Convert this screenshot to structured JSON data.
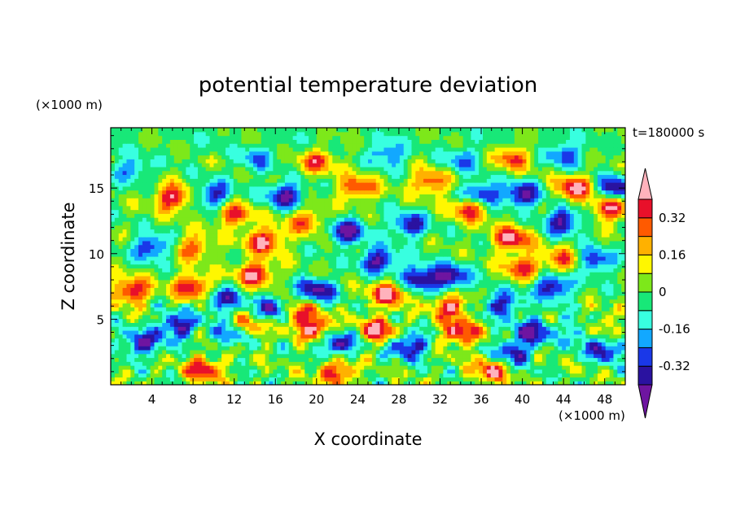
{
  "chart_data": {
    "type": "heatmap",
    "title": "potential temperature deviation",
    "xlabel": "X coordinate",
    "ylabel": "Z coordinate",
    "x_unit": "(×1000 m)",
    "y_unit": "(×1000 m)",
    "time_label": "t=180000 s",
    "xlim": [
      0,
      50
    ],
    "ylim": [
      0,
      19.6
    ],
    "x_ticks": [
      4,
      8,
      12,
      16,
      20,
      24,
      28,
      32,
      36,
      40,
      44,
      48
    ],
    "y_ticks": [
      5,
      10,
      15
    ],
    "colorbar": {
      "levels": [
        -0.4,
        -0.32,
        -0.24,
        -0.16,
        -0.08,
        0,
        0.08,
        0.16,
        0.24,
        0.32,
        0.4
      ],
      "labels": [
        "-0.32",
        "-0.16",
        "0",
        "0.16",
        "0.32"
      ],
      "label_values": [
        -0.32,
        -0.16,
        0,
        0.16,
        0.32
      ],
      "colors": [
        "#6e15a0",
        "#2a12a0",
        "#1a38e8",
        "#12a8ff",
        "#38ffe0",
        "#18e878",
        "#7de81a",
        "#fff700",
        "#ffb100",
        "#ff5a00",
        "#e8102a",
        "#ffb2bc"
      ],
      "extend": "both"
    },
    "features": [
      {
        "x": 13,
        "z": 4.4,
        "value": 0.42
      },
      {
        "x": 20,
        "z": 4.3,
        "value": 0.42
      },
      {
        "x": 26,
        "z": 4.2,
        "value": 0.42
      },
      {
        "x": 34,
        "z": 4.0,
        "value": 0.42
      },
      {
        "x": 47,
        "z": 4.2,
        "value": 0.42
      },
      {
        "x": 18,
        "z": 5.6,
        "value": 0.42
      },
      {
        "x": 6.5,
        "z": 4.5,
        "value": -0.42
      },
      {
        "x": 12,
        "z": 4.0,
        "value": -0.42
      },
      {
        "x": 16,
        "z": 5.8,
        "value": -0.42
      },
      {
        "x": 22,
        "z": 3.2,
        "value": -0.42
      },
      {
        "x": 29,
        "z": 3.0,
        "value": -0.42
      },
      {
        "x": 41,
        "z": 4.1,
        "value": -0.42
      },
      {
        "x": 46,
        "z": 4.1,
        "value": -0.42
      },
      {
        "x": 3,
        "z": 3.2,
        "value": -0.38
      },
      {
        "x": 39,
        "z": 2.4,
        "value": -0.38
      },
      {
        "x": 48,
        "z": 2.8,
        "value": -0.38
      },
      {
        "x": 9,
        "z": 1.2,
        "value": 0.38
      },
      {
        "x": 22,
        "z": 1.0,
        "value": 0.38
      },
      {
        "x": 37,
        "z": 1.2,
        "value": 0.38
      },
      {
        "x": 33,
        "z": 6.0,
        "value": 0.38
      },
      {
        "x": 27,
        "z": 7.0,
        "value": 0.42
      },
      {
        "x": 15,
        "z": 11.0,
        "value": 0.42
      },
      {
        "x": 35,
        "z": 13.5,
        "value": 0.42
      },
      {
        "x": 45,
        "z": 15.0,
        "value": 0.42
      },
      {
        "x": 48.5,
        "z": 13.5,
        "value": 0.42
      },
      {
        "x": 6,
        "z": 14.3,
        "value": 0.42
      },
      {
        "x": 39,
        "z": 11.2,
        "value": 0.42
      },
      {
        "x": 8,
        "z": 7.5,
        "value": 0.42
      },
      {
        "x": 14,
        "z": 8.5,
        "value": 0.42
      },
      {
        "x": 2,
        "z": 7.2,
        "value": 0.42
      },
      {
        "x": 17,
        "z": 14.5,
        "value": -0.42
      },
      {
        "x": 23,
        "z": 11.7,
        "value": -0.42
      },
      {
        "x": 20,
        "z": 7.2,
        "value": -0.42
      },
      {
        "x": 26,
        "z": 9.5,
        "value": -0.42
      },
      {
        "x": 30,
        "z": 8.2,
        "value": -0.42
      },
      {
        "x": 36,
        "z": 14.5,
        "value": -0.42
      },
      {
        "x": 40,
        "z": 14.5,
        "value": -0.42
      },
      {
        "x": 44,
        "z": 12.5,
        "value": -0.42
      },
      {
        "x": 49,
        "z": 15.0,
        "value": -0.42
      },
      {
        "x": 33,
        "z": 8.2,
        "value": -0.42
      },
      {
        "x": 43,
        "z": 7.5,
        "value": -0.42
      },
      {
        "x": 10,
        "z": 14.5,
        "value": -0.36
      },
      {
        "x": 4,
        "z": 10.5,
        "value": -0.36
      },
      {
        "x": 29,
        "z": 12.2,
        "value": -0.36
      },
      {
        "x": 47,
        "z": 9.5,
        "value": -0.36
      },
      {
        "x": 11,
        "z": 6.5,
        "value": -0.36
      },
      {
        "x": 38,
        "z": 6.2,
        "value": -0.36
      },
      {
        "x": 12,
        "z": 13.0,
        "value": 0.34
      },
      {
        "x": 24,
        "z": 15.0,
        "value": 0.34
      },
      {
        "x": 31,
        "z": 15.5,
        "value": 0.34
      },
      {
        "x": 40,
        "z": 9.0,
        "value": 0.34
      },
      {
        "x": 19,
        "z": 12.5,
        "value": 0.3
      },
      {
        "x": 44,
        "z": 9.5,
        "value": 0.3
      },
      {
        "x": 8,
        "z": 10.5,
        "value": 0.3
      },
      {
        "x": 20,
        "z": 17.0,
        "value": 0.3
      },
      {
        "x": 39,
        "z": 17.3,
        "value": 0.3
      },
      {
        "x": 2,
        "z": 16.5,
        "value": -0.25
      },
      {
        "x": 27,
        "z": 17.5,
        "value": -0.25
      },
      {
        "x": 44,
        "z": 17.5,
        "value": -0.25
      },
      {
        "x": 34,
        "z": 17.0,
        "value": -0.22
      },
      {
        "x": 14,
        "z": 17.2,
        "value": -0.22
      }
    ]
  }
}
